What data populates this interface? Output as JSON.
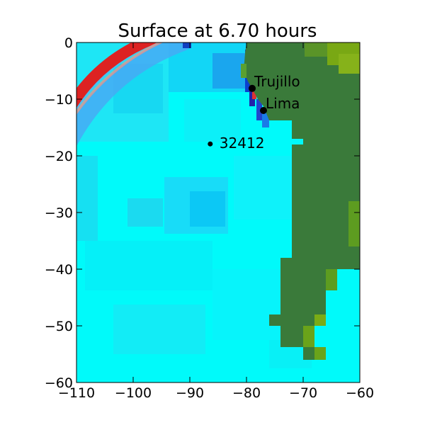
{
  "chart_data": {
    "type": "heatmap",
    "title": "Surface at 6.70 hours",
    "xlim": [
      -110,
      -60
    ],
    "ylim": [
      -60,
      0
    ],
    "xticks": [
      -110,
      -100,
      -90,
      -80,
      -70,
      -60
    ],
    "yticks": [
      0,
      -10,
      -20,
      -30,
      -40,
      -50,
      -60
    ],
    "xtick_labels": [
      "−110",
      "−100",
      "−90",
      "−80",
      "−70",
      "−60"
    ],
    "ytick_labels": [
      "0",
      "−10",
      "−20",
      "−30",
      "−40",
      "−50",
      "−60"
    ],
    "locations": [
      {
        "name": "Trujillo",
        "lon": -79.0,
        "lat": -8.1
      },
      {
        "name": "Lima",
        "lon": -77.0,
        "lat": -12.0
      },
      {
        "name": "32412",
        "lon": -86.4,
        "lat": -17.9
      }
    ],
    "colors": {
      "ocean": "#00ffff",
      "land": "#3a7a3a",
      "land_high": "#6aa31a",
      "wave_crest": "#dd2222",
      "wave_trough": "#0088ff"
    },
    "grid": false
  }
}
